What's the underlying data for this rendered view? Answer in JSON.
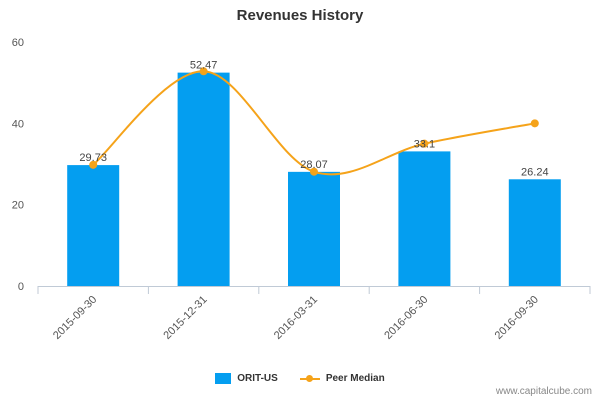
{
  "chart_data": {
    "type": "bar",
    "title": "Revenues History",
    "categories": [
      "2015-09-30",
      "2015-12-31",
      "2016-03-31",
      "2016-06-30",
      "2016-09-30"
    ],
    "series": [
      {
        "name": "ORIT-US",
        "type": "bar",
        "values": [
          29.73,
          52.47,
          28.07,
          33.1,
          26.24
        ],
        "labels": [
          "29.73",
          "52.47",
          "28.07",
          "33.1",
          "26.24"
        ],
        "color": "#049ef0"
      },
      {
        "name": "Peer Median",
        "type": "line",
        "values": [
          29.8,
          52.8,
          28.1,
          35.0,
          40.0
        ],
        "color": "#f5a31a"
      }
    ],
    "ylim": [
      0,
      60
    ],
    "yticks": [
      "0",
      "20",
      "40",
      "60"
    ],
    "xlabel": "",
    "ylabel": "",
    "grid": false,
    "legend": "bottom-center"
  },
  "credit": "www.capitalcube.com"
}
